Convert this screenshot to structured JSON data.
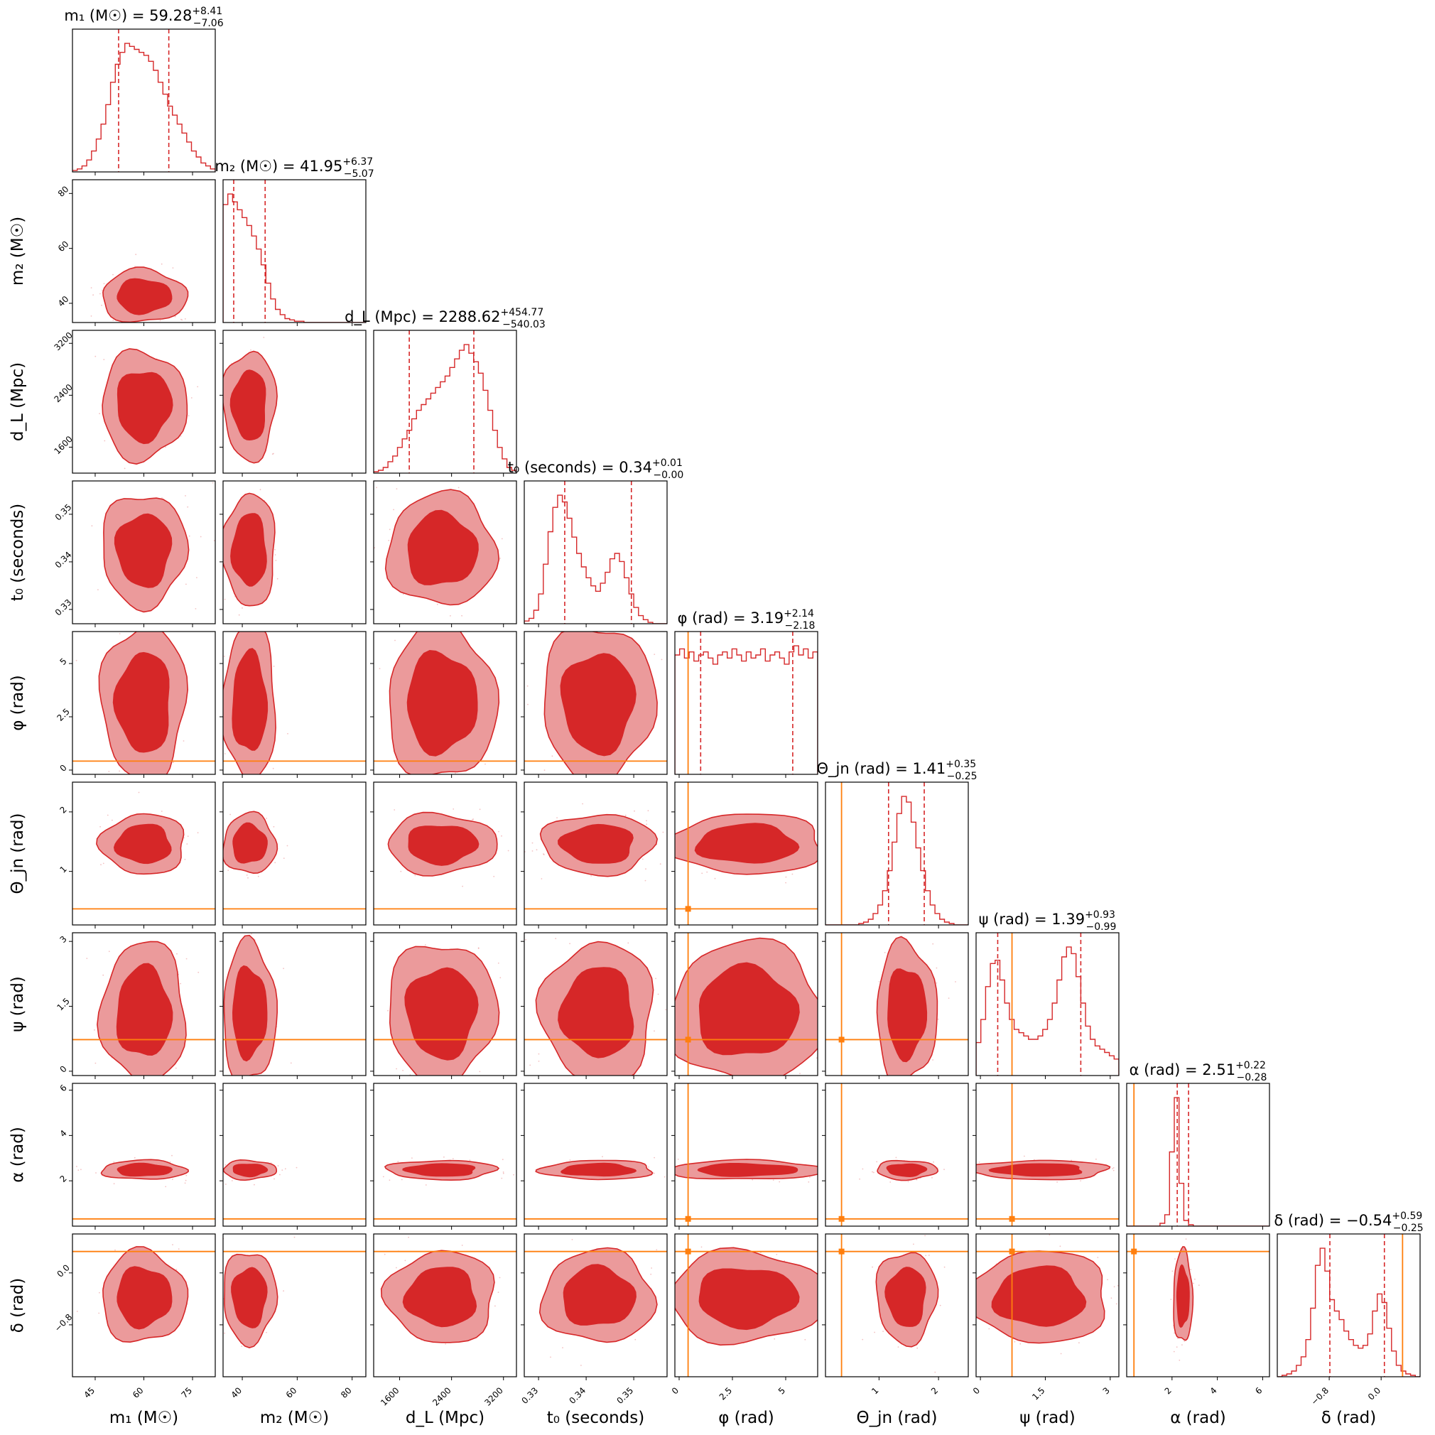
{
  "chart_data": {
    "type": "corner",
    "colors": {
      "posterior": "#d62728",
      "posterior_light": "#eb9a9b",
      "injection": "#ff7f0e",
      "axes": "#000000"
    },
    "parameters": [
      {
        "key": "m1",
        "axis_label": "m₁ (M☉)",
        "title_prefix": "m₁ (M☉) = ",
        "median": "59.28",
        "err_plus": "+8.41",
        "err_minus": "−7.06",
        "range": [
          38,
          82
        ],
        "ticks": [
          45,
          60,
          75
        ],
        "ci": [
          52.22,
          67.69
        ],
        "hist": [
          1,
          2,
          4,
          8,
          14,
          22,
          32,
          45,
          60,
          72,
          80,
          86,
          84,
          82,
          80,
          78,
          74,
          68,
          60,
          52,
          44,
          38,
          32,
          26,
          20,
          14,
          10,
          6,
          4,
          2
        ],
        "injection": null
      },
      {
        "key": "m2",
        "axis_label": "m₂ (M☉)",
        "title_prefix": "m₂ (M☉) = ",
        "median": "41.95",
        "err_plus": "+6.37",
        "err_minus": "−5.07",
        "range": [
          33,
          85
        ],
        "ticks": [
          40,
          60,
          80
        ],
        "ci": [
          36.88,
          48.32
        ],
        "hist": [
          90,
          98,
          92,
          86,
          80,
          74,
          66,
          56,
          44,
          30,
          18,
          10,
          6,
          3,
          2,
          1,
          1,
          0,
          0,
          0,
          0,
          0,
          0,
          0,
          0,
          0,
          0,
          0,
          0,
          0
        ],
        "injection": null
      },
      {
        "key": "dL",
        "axis_label": "d_L (Mpc)",
        "title_prefix": "d_L (Mpc) = ",
        "median": "2288.62",
        "err_plus": "+454.77",
        "err_minus": "−540.03",
        "range": [
          1200,
          3400
        ],
        "ticks": [
          1600,
          2400,
          3200
        ],
        "ci": [
          1748.59,
          2743.39
        ],
        "hist": [
          1,
          2,
          4,
          8,
          12,
          18,
          24,
          30,
          38,
          44,
          48,
          52,
          56,
          60,
          64,
          68,
          74,
          80,
          86,
          90,
          84,
          78,
          70,
          58,
          44,
          30,
          18,
          10,
          4,
          2
        ],
        "injection": null
      },
      {
        "key": "t0",
        "axis_label": "t₀ (seconds)",
        "title_prefix": "t₀ (seconds) = ",
        "median": "0.34",
        "err_plus": "+0.01",
        "err_minus": "−0.00",
        "range": [
          0.327,
          0.357
        ],
        "ticks": [
          0.33,
          0.34,
          0.35
        ],
        "ci": [
          0.3355,
          0.3495
        ],
        "hist": [
          2,
          4,
          10,
          22,
          44,
          68,
          86,
          95,
          90,
          78,
          64,
          52,
          42,
          34,
          28,
          24,
          30,
          38,
          48,
          52,
          46,
          34,
          22,
          12,
          6,
          3,
          1,
          0,
          0,
          0
        ],
        "injection": null
      },
      {
        "key": "phi",
        "axis_label": "φ (rad)",
        "title_prefix": "φ (rad) = ",
        "median": "3.19",
        "err_plus": "+2.14",
        "err_minus": "−2.18",
        "range": [
          -0.2,
          6.5
        ],
        "ticks": [
          0.0,
          2.5,
          5.0
        ],
        "ci": [
          1.01,
          5.33
        ],
        "hist": [
          78,
          82,
          76,
          80,
          74,
          78,
          80,
          76,
          72,
          78,
          80,
          76,
          82,
          78,
          74,
          80,
          76,
          78,
          82,
          74,
          78,
          80,
          76,
          72,
          80,
          84,
          78,
          82,
          76,
          80
        ],
        "injection": 0.42
      },
      {
        "key": "theta_jn",
        "axis_label": "Θ_jn (rad)",
        "title_prefix": "Θ_jn (rad) = ",
        "median": "1.41",
        "err_plus": "+0.35",
        "err_minus": "−0.25",
        "range": [
          0.1,
          2.5
        ],
        "ticks": [
          1,
          2
        ],
        "ci": [
          1.16,
          1.76
        ],
        "hist": [
          0,
          0,
          0,
          0,
          0,
          0,
          0,
          1,
          2,
          4,
          8,
          14,
          24,
          38,
          58,
          78,
          90,
          86,
          72,
          54,
          38,
          24,
          14,
          8,
          4,
          2,
          1,
          0,
          0,
          0
        ],
        "injection": 0.37
      },
      {
        "key": "psi",
        "axis_label": "ψ (rad)",
        "title_prefix": "ψ (rad) = ",
        "median": "1.39",
        "err_plus": "+0.93",
        "err_minus": "−0.99",
        "range": [
          -0.1,
          3.2
        ],
        "ticks": [
          0.0,
          1.5,
          3.0
        ],
        "ci": [
          0.4,
          2.32
        ],
        "hist": [
          20,
          34,
          54,
          68,
          70,
          58,
          44,
          34,
          28,
          26,
          24,
          22,
          22,
          24,
          28,
          34,
          44,
          58,
          72,
          78,
          74,
          60,
          44,
          30,
          22,
          18,
          16,
          14,
          12,
          10
        ],
        "injection": 0.73
      },
      {
        "key": "alpha",
        "axis_label": "α (rad)",
        "title_prefix": "α (rad) = ",
        "median": "2.51",
        "err_plus": "+0.22",
        "err_minus": "−0.28",
        "range": [
          0.0,
          6.3
        ],
        "ticks": [
          2,
          4,
          6
        ],
        "ci": [
          2.23,
          2.73
        ],
        "hist": [
          0,
          0,
          0,
          0,
          0,
          0,
          0,
          2,
          8,
          52,
          90,
          30,
          4,
          1,
          0,
          0,
          0,
          0,
          0,
          0,
          0,
          0,
          0,
          0,
          0,
          0,
          0,
          0,
          0,
          0
        ],
        "injection": 0.32
      },
      {
        "key": "delta",
        "axis_label": "δ (rad)",
        "title_prefix": "δ (rad) = ",
        "median": "−0.54",
        "err_plus": "+0.59",
        "err_minus": "−0.25",
        "range": [
          -1.6,
          0.6
        ],
        "ticks": [
          -0.8,
          0.0
        ],
        "tick_labels": [
          "−0.8",
          "0.0"
        ],
        "ci": [
          -0.79,
          0.05
        ],
        "hist": [
          0,
          1,
          2,
          4,
          8,
          14,
          26,
          48,
          78,
          90,
          74,
          54,
          46,
          40,
          32,
          26,
          22,
          20,
          22,
          30,
          46,
          58,
          52,
          34,
          18,
          8,
          4,
          2,
          1,
          0
        ],
        "injection": 0.33
      }
    ]
  }
}
